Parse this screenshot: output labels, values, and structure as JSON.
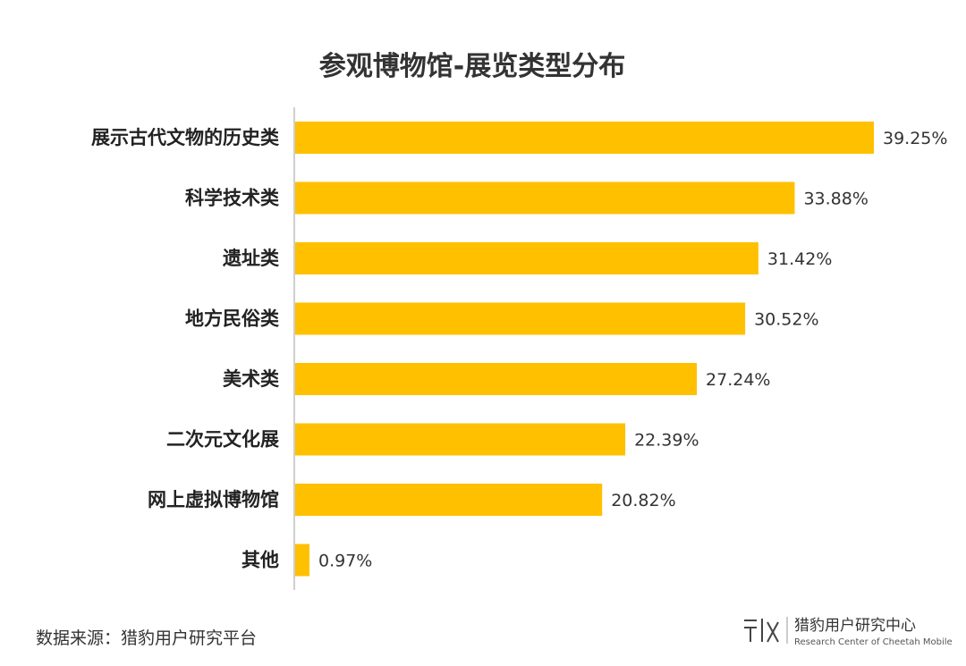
{
  "chart_data": {
    "type": "bar",
    "orientation": "horizontal",
    "title": "参观博物馆-展览类型分布",
    "categories": [
      "展示古代文物的历史类",
      "科学技术类",
      "遗址类",
      "地方民俗类",
      "美术类",
      "二次元文化展",
      "网上虚拟博物馆",
      "其他"
    ],
    "values": [
      39.25,
      33.88,
      31.42,
      30.52,
      27.24,
      22.39,
      20.82,
      0.97
    ],
    "value_labels": [
      "39.25%",
      "33.88%",
      "31.42%",
      "30.52%",
      "27.24%",
      "22.39%",
      "20.82%",
      "0.97%"
    ],
    "bar_color": "#FFC000",
    "xlim": [
      0,
      39.25
    ],
    "grid": false,
    "legend": "none"
  },
  "footer": {
    "source": "数据来源：猎豹用户研究平台"
  },
  "logo": {
    "name": "猎豹用户研究中心",
    "subtitle": "Research Center of Cheetah Mobile"
  }
}
